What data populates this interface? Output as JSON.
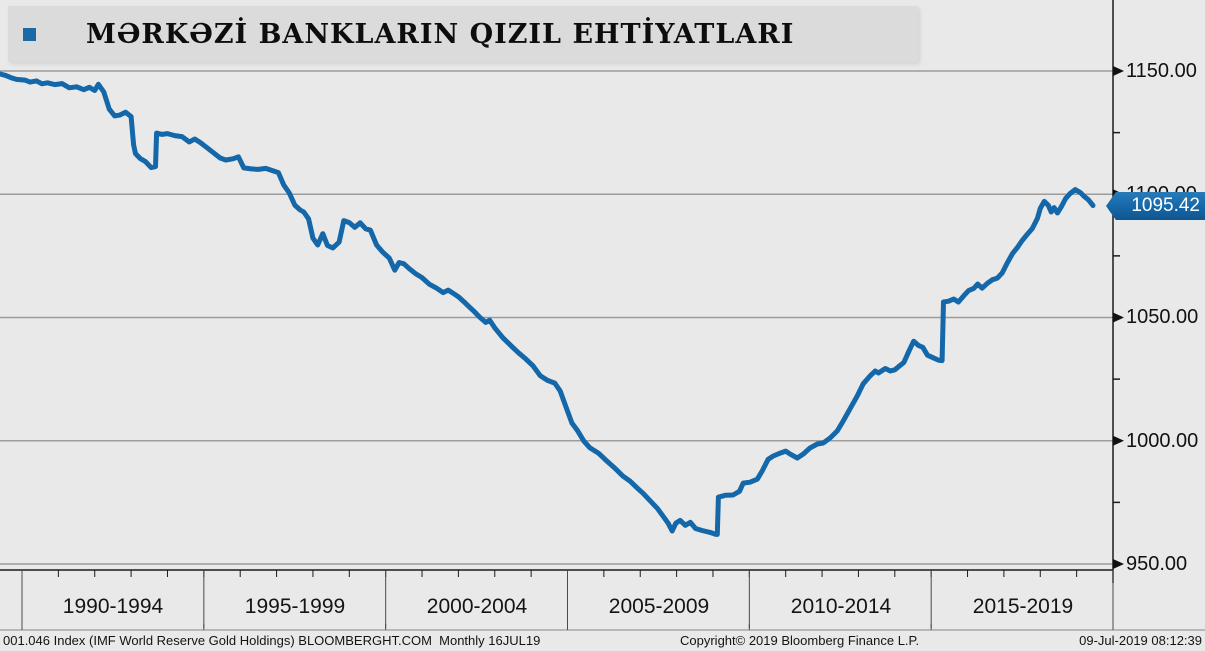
{
  "window": {
    "title": "MƏRKƏZİ BANKLARIN QIZIL EHTİYATLARI"
  },
  "price_tag": {
    "value": "1095.42",
    "color": "#1467a8"
  },
  "footer": {
    "left": "001.046 Index (IMF World Reserve Gold Holdings) BLOOMBERGHT.COM  Monthly 16JUL19",
    "center": "Copyright© 2019 Bloomberg Finance L.P.",
    "right": "09-Jul-2019 08:12:39"
  },
  "icons": {
    "legend_bullet": "blue-square-icon",
    "y_tick_arrow": "right-arrow-tick-icon"
  },
  "chart_data": {
    "type": "line",
    "title": "MƏRKƏZİ BANKLARIN QIZIL EHTİYATLARI",
    "subtitle": "IMF World Reserve Gold Holdings, monthly, Bloomberg",
    "legend_position": "none",
    "grid": true,
    "gridline_color": "#9c9c9c",
    "background_color": "#e9e9e9",
    "line_color": "#1467a8",
    "last_value": 1095.42,
    "y_axis": {
      "side": "right",
      "ylim": [
        945,
        1163
      ],
      "major_ticks": [
        1150,
        1100,
        1050,
        1000,
        950
      ],
      "major_tick_labels": [
        "1150.00",
        "1100.00",
        "1050.00",
        "1000.00",
        "950.00"
      ],
      "minor_ticks": [
        1125,
        1075,
        1025,
        975
      ]
    },
    "x_axis": {
      "xlim_years": [
        1989.4,
        2020
      ],
      "period_labels": [
        "1990-1994",
        "1995-1999",
        "2000-2004",
        "2005-2009",
        "2010-2014",
        "2015-2019"
      ],
      "period_start_years": [
        1990,
        1995,
        2000,
        2005,
        2010,
        2015
      ],
      "minor_tick_interval_years": 1
    },
    "points": [
      [
        1989.4,
        1148.8
      ],
      [
        1989.55,
        1148.2
      ],
      [
        1989.7,
        1147.3
      ],
      [
        1989.85,
        1146.6
      ],
      [
        1990.08,
        1146.3
      ],
      [
        1990.22,
        1145.5
      ],
      [
        1990.4,
        1146.0
      ],
      [
        1990.55,
        1144.8
      ],
      [
        1990.7,
        1145.2
      ],
      [
        1990.9,
        1144.5
      ],
      [
        1991.1,
        1144.9
      ],
      [
        1991.3,
        1143.2
      ],
      [
        1991.5,
        1143.6
      ],
      [
        1991.7,
        1142.4
      ],
      [
        1991.85,
        1143.4
      ],
      [
        1992.0,
        1142.1
      ],
      [
        1992.1,
        1144.6
      ],
      [
        1992.25,
        1141.5
      ],
      [
        1992.4,
        1134.5
      ],
      [
        1992.55,
        1131.8
      ],
      [
        1992.7,
        1132.2
      ],
      [
        1992.85,
        1133.3
      ],
      [
        1993.0,
        1131.5
      ],
      [
        1993.07,
        1120.0
      ],
      [
        1993.12,
        1116.5
      ],
      [
        1993.25,
        1114.5
      ],
      [
        1993.4,
        1113.2
      ],
      [
        1993.55,
        1110.8
      ],
      [
        1993.67,
        1111.2
      ],
      [
        1993.7,
        1124.8
      ],
      [
        1993.85,
        1124.3
      ],
      [
        1994.0,
        1124.6
      ],
      [
        1994.2,
        1123.8
      ],
      [
        1994.4,
        1123.4
      ],
      [
        1994.6,
        1121.2
      ],
      [
        1994.75,
        1122.4
      ],
      [
        1994.9,
        1121.0
      ],
      [
        1995.05,
        1119.3
      ],
      [
        1995.25,
        1117.0
      ],
      [
        1995.45,
        1114.7
      ],
      [
        1995.6,
        1113.9
      ],
      [
        1995.8,
        1114.4
      ],
      [
        1995.95,
        1115.2
      ],
      [
        1996.1,
        1110.7
      ],
      [
        1996.3,
        1110.3
      ],
      [
        1996.5,
        1110.1
      ],
      [
        1996.7,
        1110.5
      ],
      [
        1996.9,
        1109.5
      ],
      [
        1997.05,
        1108.8
      ],
      [
        1997.2,
        1103.7
      ],
      [
        1997.35,
        1100.5
      ],
      [
        1997.5,
        1095.6
      ],
      [
        1997.65,
        1093.6
      ],
      [
        1997.75,
        1092.8
      ],
      [
        1997.88,
        1090.0
      ],
      [
        1998.0,
        1082.2
      ],
      [
        1998.13,
        1079.4
      ],
      [
        1998.27,
        1084.0
      ],
      [
        1998.4,
        1079.2
      ],
      [
        1998.55,
        1078.2
      ],
      [
        1998.72,
        1080.6
      ],
      [
        1998.85,
        1089.3
      ],
      [
        1999.0,
        1088.5
      ],
      [
        1999.15,
        1086.6
      ],
      [
        1999.3,
        1088.4
      ],
      [
        1999.45,
        1086.0
      ],
      [
        1999.58,
        1085.4
      ],
      [
        1999.75,
        1079.4
      ],
      [
        1999.92,
        1076.5
      ],
      [
        2000.1,
        1074.1
      ],
      [
        2000.25,
        1069.2
      ],
      [
        2000.37,
        1072.3
      ],
      [
        2000.5,
        1071.8
      ],
      [
        2000.65,
        1069.8
      ],
      [
        2000.82,
        1067.8
      ],
      [
        2001.0,
        1066.2
      ],
      [
        2001.2,
        1063.5
      ],
      [
        2001.4,
        1061.9
      ],
      [
        2001.58,
        1060.1
      ],
      [
        2001.72,
        1061.1
      ],
      [
        2001.88,
        1059.6
      ],
      [
        2002.0,
        1058.4
      ],
      [
        2002.15,
        1056.4
      ],
      [
        2002.3,
        1054.3
      ],
      [
        2002.45,
        1052.2
      ],
      [
        2002.58,
        1050.2
      ],
      [
        2002.75,
        1048.0
      ],
      [
        2002.86,
        1048.9
      ],
      [
        2003.0,
        1045.8
      ],
      [
        2003.22,
        1041.8
      ],
      [
        2003.45,
        1038.5
      ],
      [
        2003.65,
        1035.7
      ],
      [
        2003.85,
        1033.2
      ],
      [
        2004.05,
        1030.4
      ],
      [
        2004.25,
        1026.4
      ],
      [
        2004.45,
        1024.5
      ],
      [
        2004.65,
        1023.4
      ],
      [
        2004.8,
        1020.2
      ],
      [
        2004.95,
        1014.0
      ],
      [
        2005.12,
        1007.2
      ],
      [
        2005.28,
        1004.0
      ],
      [
        2005.45,
        999.8
      ],
      [
        2005.62,
        997.1
      ],
      [
        2005.85,
        995.0
      ],
      [
        2006.08,
        991.8
      ],
      [
        2006.3,
        988.9
      ],
      [
        2006.52,
        985.7
      ],
      [
        2006.72,
        983.6
      ],
      [
        2006.92,
        980.8
      ],
      [
        2007.08,
        978.7
      ],
      [
        2007.28,
        975.5
      ],
      [
        2007.47,
        972.6
      ],
      [
        2007.63,
        969.4
      ],
      [
        2007.77,
        966.5
      ],
      [
        2007.88,
        963.4
      ],
      [
        2007.98,
        966.6
      ],
      [
        2008.1,
        967.7
      ],
      [
        2008.24,
        965.7
      ],
      [
        2008.38,
        966.9
      ],
      [
        2008.52,
        964.4
      ],
      [
        2008.7,
        963.6
      ],
      [
        2008.92,
        962.8
      ],
      [
        2009.08,
        962.0
      ],
      [
        2009.12,
        962.0
      ],
      [
        2009.15,
        977.1
      ],
      [
        2009.35,
        977.9
      ],
      [
        2009.55,
        978.0
      ],
      [
        2009.73,
        979.5
      ],
      [
        2009.83,
        982.8
      ],
      [
        2010.02,
        983.2
      ],
      [
        2010.22,
        984.4
      ],
      [
        2010.35,
        987.7
      ],
      [
        2010.52,
        992.5
      ],
      [
        2010.66,
        993.8
      ],
      [
        2010.85,
        995.0
      ],
      [
        2011.0,
        995.8
      ],
      [
        2011.12,
        994.6
      ],
      [
        2011.32,
        993.0
      ],
      [
        2011.48,
        994.6
      ],
      [
        2011.67,
        997.1
      ],
      [
        2011.87,
        998.7
      ],
      [
        2012.03,
        999.1
      ],
      [
        2012.22,
        1001.1
      ],
      [
        2012.42,
        1004.0
      ],
      [
        2012.58,
        1008.0
      ],
      [
        2012.77,
        1013.0
      ],
      [
        2012.97,
        1018.2
      ],
      [
        2013.13,
        1023.1
      ],
      [
        2013.32,
        1026.3
      ],
      [
        2013.46,
        1028.3
      ],
      [
        2013.55,
        1027.5
      ],
      [
        2013.74,
        1029.3
      ],
      [
        2013.88,
        1028.3
      ],
      [
        2014.0,
        1028.8
      ],
      [
        2014.1,
        1030.0
      ],
      [
        2014.25,
        1031.8
      ],
      [
        2014.4,
        1036.7
      ],
      [
        2014.52,
        1040.4
      ],
      [
        2014.65,
        1038.7
      ],
      [
        2014.77,
        1037.9
      ],
      [
        2014.9,
        1034.7
      ],
      [
        2015.05,
        1033.7
      ],
      [
        2015.2,
        1032.7
      ],
      [
        2015.3,
        1032.5
      ],
      [
        2015.34,
        1056.3
      ],
      [
        2015.48,
        1056.6
      ],
      [
        2015.62,
        1057.5
      ],
      [
        2015.75,
        1056.3
      ],
      [
        2015.9,
        1058.9
      ],
      [
        2016.03,
        1060.9
      ],
      [
        2016.17,
        1061.8
      ],
      [
        2016.28,
        1063.6
      ],
      [
        2016.4,
        1061.9
      ],
      [
        2016.55,
        1063.9
      ],
      [
        2016.68,
        1065.3
      ],
      [
        2016.82,
        1066.0
      ],
      [
        2016.95,
        1068.0
      ],
      [
        2017.1,
        1072.3
      ],
      [
        2017.24,
        1076.0
      ],
      [
        2017.37,
        1078.4
      ],
      [
        2017.5,
        1081.2
      ],
      [
        2017.64,
        1083.7
      ],
      [
        2017.78,
        1086.1
      ],
      [
        2017.92,
        1090.2
      ],
      [
        2018.0,
        1094.3
      ],
      [
        2018.11,
        1097.1
      ],
      [
        2018.22,
        1095.5
      ],
      [
        2018.3,
        1092.8
      ],
      [
        2018.38,
        1094.6
      ],
      [
        2018.47,
        1092.4
      ],
      [
        2018.58,
        1095.0
      ],
      [
        2018.7,
        1098.3
      ],
      [
        2018.82,
        1100.3
      ],
      [
        2018.96,
        1101.9
      ],
      [
        2019.1,
        1100.7
      ],
      [
        2019.21,
        1099.1
      ],
      [
        2019.32,
        1097.8
      ],
      [
        2019.45,
        1095.42
      ]
    ]
  }
}
